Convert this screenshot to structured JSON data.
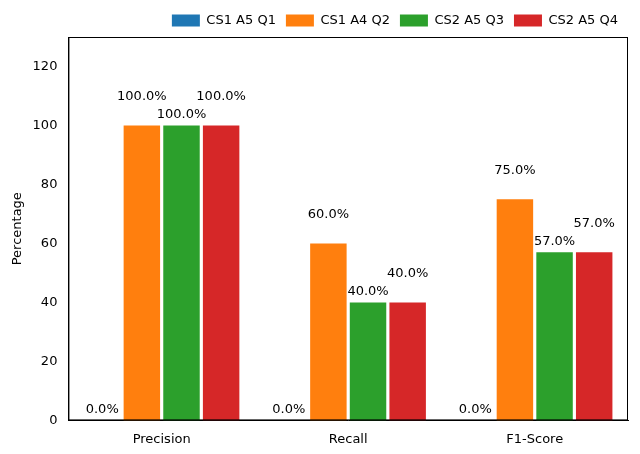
{
  "chart_data": {
    "type": "bar",
    "y_label": "Percentage",
    "categories": [
      "Precision",
      "Recall",
      "F1-Score"
    ],
    "series": [
      {
        "name": "CS1 A5 Q1",
        "color": "#1f77b4",
        "values": [
          0,
          0,
          0
        ],
        "value_labels": [
          "0.0%",
          "0.0%",
          "0.0%"
        ]
      },
      {
        "name": "CS1 A4 Q2",
        "color": "#ff7f0e",
        "values": [
          100,
          60,
          75
        ],
        "value_labels": [
          "100.0%",
          "60.0%",
          "75.0%"
        ]
      },
      {
        "name": "CS2 A5 Q3",
        "color": "#2ca02c",
        "values": [
          100,
          40,
          57
        ],
        "value_labels": [
          "100.0%",
          "40.0%",
          "57.0%"
        ]
      },
      {
        "name": "CS2 A5 Q4",
        "color": "#d62728",
        "values": [
          100,
          40,
          57
        ],
        "value_labels": [
          "100.0%",
          "40.0%",
          "57.0%"
        ]
      }
    ],
    "ylim": [
      0,
      130
    ],
    "yticks": [
      0,
      20,
      40,
      60,
      80,
      100,
      120
    ],
    "grid": false,
    "legend": "upper right",
    "data_labels": true
  }
}
